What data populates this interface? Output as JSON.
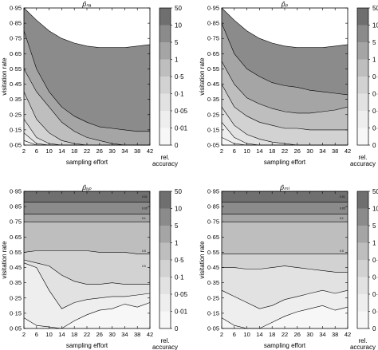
{
  "figure": {
    "x_tick_labels": [
      "2",
      "6",
      "10",
      "14",
      "18",
      "22",
      "26",
      "30",
      "34",
      "38",
      "42"
    ],
    "y_tick_labels": [
      "0·05",
      "0·15",
      "0·25",
      "0·35",
      "0·45",
      "0·55",
      "0·65",
      "0·75",
      "0·85",
      "0·95"
    ],
    "colorbar": {
      "tick_labels": [
        "50",
        "10",
        "5",
        "1",
        "0·5",
        "0·1",
        "0·05",
        "0·01",
        "0"
      ],
      "label_line1": "rel.",
      "label_line2": "accuracy",
      "colors": [
        "#6f6f6f",
        "#8b8b8b",
        "#a5a5a5",
        "#bebebe",
        "#d2d2d2",
        "#e2e2e2",
        "#eeeeee",
        "#f7f7f7"
      ]
    }
  },
  "chart_data": [
    {
      "type": "heatmap",
      "title": "p̂ₙₐ",
      "xlabel": "sampling effort",
      "ylabel": "visitation rate",
      "xlim": [
        2,
        42
      ],
      "ylim": [
        0.05,
        0.95
      ],
      "x_ticks": [
        2,
        6,
        10,
        14,
        18,
        22,
        26,
        30,
        34,
        38,
        42
      ],
      "y_ticks": [
        0.05,
        0.15,
        0.25,
        0.35,
        0.45,
        0.55,
        0.65,
        0.75,
        0.85,
        0.95
      ],
      "contour_levels": [
        0.01,
        0.05,
        0.1,
        0.5,
        1,
        5,
        10,
        50
      ],
      "bands": [
        {
          "level": 6,
          "x": [
            2,
            6,
            10,
            14,
            18,
            22,
            26,
            30,
            34,
            38,
            42
          ],
          "y": [
            0.95,
            0.87,
            0.8,
            0.75,
            0.72,
            0.7,
            0.69,
            0.69,
            0.69,
            0.7,
            0.71
          ]
        },
        {
          "level": 5,
          "x": [
            2,
            6,
            10,
            14,
            18,
            22,
            26,
            30,
            34,
            38,
            42
          ],
          "y": [
            0.8,
            0.55,
            0.4,
            0.3,
            0.24,
            0.2,
            0.17,
            0.16,
            0.15,
            0.14,
            0.14
          ]
        },
        {
          "level": 4,
          "x": [
            2,
            6,
            10,
            14,
            18,
            22,
            26,
            30,
            34,
            38,
            42
          ],
          "y": [
            0.55,
            0.4,
            0.3,
            0.2,
            0.14,
            0.1,
            0.08,
            0.06,
            0.05,
            0.05,
            0.05
          ]
        },
        {
          "level": 3,
          "x": [
            2,
            6,
            10,
            14,
            18,
            22,
            26,
            30,
            34,
            38,
            42
          ],
          "y": [
            0.4,
            0.22,
            0.13,
            0.08,
            0.06,
            0.05,
            0.05,
            0.05,
            0.05,
            0.05,
            0.05
          ]
        },
        {
          "level": 2,
          "x": [
            2,
            6,
            10,
            14,
            18,
            22,
            26,
            30,
            34,
            38,
            42
          ],
          "y": [
            0.22,
            0.1,
            0.06,
            0.05,
            0.05,
            0.05,
            0.05,
            0.05,
            0.05,
            0.05,
            0.05
          ]
        },
        {
          "level": 1,
          "x": [
            2,
            6,
            10,
            14,
            18,
            22,
            26,
            30,
            34,
            38,
            42
          ],
          "y": [
            0.13,
            0.06,
            0.05,
            0.05,
            0.05,
            0.05,
            0.05,
            0.05,
            0.05,
            0.05,
            0.05
          ]
        },
        {
          "level": 0,
          "x": [
            2,
            6,
            10,
            14,
            18,
            22,
            26,
            30,
            34,
            38,
            42
          ],
          "y": [
            0.08,
            0.05,
            0.05,
            0.05,
            0.05,
            0.05,
            0.05,
            0.05,
            0.05,
            0.05,
            0.05
          ]
        }
      ]
    },
    {
      "type": "heatmap",
      "title": "p̂ₚ",
      "xlabel": "sampling effort",
      "ylabel": "visitation rate",
      "xlim": [
        2,
        42
      ],
      "ylim": [
        0.05,
        0.95
      ],
      "x_ticks": [
        2,
        6,
        10,
        14,
        18,
        22,
        26,
        30,
        34,
        38,
        42
      ],
      "y_ticks": [
        0.05,
        0.15,
        0.25,
        0.35,
        0.45,
        0.55,
        0.65,
        0.75,
        0.85,
        0.95
      ],
      "contour_levels": [
        0.01,
        0.05,
        0.1,
        0.5,
        1,
        5,
        10,
        50
      ],
      "bands": [
        {
          "level": 6,
          "x": [
            2,
            6,
            10,
            14,
            18,
            22,
            26,
            30,
            34,
            38,
            42
          ],
          "y": [
            0.95,
            0.87,
            0.8,
            0.75,
            0.72,
            0.7,
            0.69,
            0.69,
            0.69,
            0.7,
            0.71
          ]
        },
        {
          "level": 5,
          "x": [
            2,
            6,
            10,
            14,
            18,
            22,
            26,
            30,
            34,
            38,
            42
          ],
          "y": [
            0.85,
            0.65,
            0.55,
            0.5,
            0.46,
            0.44,
            0.43,
            0.41,
            0.4,
            0.39,
            0.38
          ]
        },
        {
          "level": 4,
          "x": [
            2,
            6,
            10,
            14,
            18,
            22,
            26,
            30,
            34,
            38,
            42
          ],
          "y": [
            0.6,
            0.45,
            0.36,
            0.32,
            0.29,
            0.27,
            0.26,
            0.26,
            0.27,
            0.28,
            0.3
          ]
        },
        {
          "level": 3,
          "x": [
            2,
            6,
            10,
            14,
            18,
            22,
            26,
            30,
            34,
            38,
            42
          ],
          "y": [
            0.45,
            0.3,
            0.24,
            0.2,
            0.18,
            0.16,
            0.16,
            0.15,
            0.15,
            0.15,
            0.15
          ]
        },
        {
          "level": 2,
          "x": [
            2,
            6,
            10,
            14,
            18,
            22,
            26,
            30,
            34,
            38,
            42
          ],
          "y": [
            0.3,
            0.18,
            0.12,
            0.09,
            0.07,
            0.06,
            0.05,
            0.05,
            0.05,
            0.05,
            0.05
          ]
        },
        {
          "level": 1,
          "x": [
            2,
            6,
            10,
            14,
            18,
            22,
            26,
            30,
            34,
            38,
            42
          ],
          "y": [
            0.2,
            0.1,
            0.06,
            0.05,
            0.05,
            0.05,
            0.05,
            0.05,
            0.05,
            0.05,
            0.05
          ]
        },
        {
          "level": 0,
          "x": [
            2,
            6,
            10,
            14,
            18,
            22,
            26,
            30,
            34,
            38,
            42
          ],
          "y": [
            0.1,
            0.06,
            0.05,
            0.05,
            0.05,
            0.05,
            0.05,
            0.05,
            0.05,
            0.05,
            0.05
          ]
        }
      ]
    },
    {
      "type": "heatmap",
      "title": "p̂ₐₚ",
      "xlabel": "sampling effort",
      "ylabel": "visitation rate",
      "xlim": [
        2,
        42
      ],
      "ylim": [
        0.05,
        0.95
      ],
      "x_ticks": [
        2,
        6,
        10,
        14,
        18,
        22,
        26,
        30,
        34,
        38,
        42
      ],
      "y_ticks": [
        0.05,
        0.15,
        0.25,
        0.35,
        0.45,
        0.55,
        0.65,
        0.75,
        0.85,
        0.95
      ],
      "contour_levels": [
        0.01,
        0.05,
        0.1,
        0.5,
        1,
        5,
        10,
        50
      ],
      "contour_labels": [
        "0.01",
        "0.05",
        "0.1",
        "0.5",
        "0.5"
      ],
      "bands": [
        {
          "level": 7,
          "x": [
            2,
            42
          ],
          "y": [
            0.95,
            0.95
          ]
        },
        {
          "level": 6,
          "x": [
            2,
            42
          ],
          "y": [
            0.88,
            0.88
          ]
        },
        {
          "level": 5,
          "x": [
            2,
            42
          ],
          "y": [
            0.8,
            0.8
          ]
        },
        {
          "level": 4,
          "x": [
            2,
            6,
            10,
            14,
            18,
            22,
            26,
            30,
            34,
            38,
            42
          ],
          "y": [
            0.75,
            0.75,
            0.75,
            0.75,
            0.75,
            0.75,
            0.75,
            0.75,
            0.75,
            0.75,
            0.75
          ]
        },
        {
          "level": 3,
          "x": [
            2,
            6,
            10,
            14,
            18,
            22,
            26,
            30,
            34,
            38,
            42
          ],
          "y": [
            0.55,
            0.56,
            0.56,
            0.56,
            0.56,
            0.56,
            0.55,
            0.55,
            0.55,
            0.54,
            0.54
          ]
        },
        {
          "level": 2,
          "x": [
            2,
            6,
            10,
            14,
            18,
            22,
            26,
            30,
            34,
            38,
            42
          ],
          "y": [
            0.5,
            0.48,
            0.46,
            0.4,
            0.36,
            0.34,
            0.34,
            0.35,
            0.34,
            0.34,
            0.34
          ]
        },
        {
          "level": 1,
          "x": [
            2,
            6,
            10,
            14,
            18,
            22,
            26,
            30,
            34,
            38,
            42
          ],
          "y": [
            0.48,
            0.45,
            0.3,
            0.18,
            0.22,
            0.24,
            0.25,
            0.26,
            0.26,
            0.27,
            0.28
          ]
        },
        {
          "level": 0,
          "x": [
            2,
            6,
            10,
            14,
            18,
            22,
            26,
            30,
            34,
            38,
            42
          ],
          "y": [
            0.12,
            0.07,
            0.06,
            0.05,
            0.1,
            0.14,
            0.17,
            0.18,
            0.21,
            0.19,
            0.22
          ]
        }
      ]
    },
    {
      "type": "heatmap",
      "title": "p̂ₘₗ",
      "xlabel": "sampling effort",
      "ylabel": "visitation rate",
      "xlim": [
        2,
        42
      ],
      "ylim": [
        0.05,
        0.95
      ],
      "x_ticks": [
        2,
        6,
        10,
        14,
        18,
        22,
        26,
        30,
        34,
        38,
        42
      ],
      "y_ticks": [
        0.05,
        0.15,
        0.25,
        0.35,
        0.45,
        0.55,
        0.65,
        0.75,
        0.85,
        0.95
      ],
      "contour_levels": [
        0.01,
        0.05,
        0.1,
        0.5,
        1,
        5,
        10,
        50
      ],
      "contour_labels": [
        "0.01",
        "0.05",
        "0.1",
        "0.5"
      ],
      "bands": [
        {
          "level": 7,
          "x": [
            2,
            42
          ],
          "y": [
            0.95,
            0.95
          ]
        },
        {
          "level": 6,
          "x": [
            2,
            42
          ],
          "y": [
            0.88,
            0.88
          ]
        },
        {
          "level": 5,
          "x": [
            2,
            42
          ],
          "y": [
            0.8,
            0.8
          ]
        },
        {
          "level": 4,
          "x": [
            2,
            6,
            10,
            14,
            18,
            22,
            26,
            30,
            34,
            38,
            42
          ],
          "y": [
            0.75,
            0.75,
            0.75,
            0.75,
            0.75,
            0.75,
            0.75,
            0.75,
            0.75,
            0.75,
            0.75
          ]
        },
        {
          "level": 3,
          "x": [
            2,
            6,
            10,
            14,
            18,
            22,
            26,
            30,
            34,
            38,
            42
          ],
          "y": [
            0.54,
            0.54,
            0.54,
            0.54,
            0.54,
            0.54,
            0.54,
            0.54,
            0.54,
            0.54,
            0.54
          ]
        },
        {
          "level": 2,
          "x": [
            2,
            6,
            10,
            14,
            18,
            22,
            26,
            30,
            34,
            38,
            42
          ],
          "y": [
            0.45,
            0.45,
            0.44,
            0.44,
            0.45,
            0.46,
            0.45,
            0.44,
            0.43,
            0.42,
            0.42
          ]
        },
        {
          "level": 1,
          "x": [
            2,
            6,
            10,
            14,
            18,
            22,
            26,
            30,
            34,
            38,
            42
          ],
          "y": [
            0.3,
            0.26,
            0.22,
            0.18,
            0.2,
            0.24,
            0.26,
            0.28,
            0.3,
            0.28,
            0.3
          ]
        },
        {
          "level": 0,
          "x": [
            2,
            6,
            10,
            14,
            18,
            22,
            26,
            30,
            34,
            38,
            42
          ],
          "y": [
            0.12,
            0.07,
            0.05,
            0.05,
            0.09,
            0.13,
            0.16,
            0.18,
            0.2,
            0.17,
            0.19
          ]
        }
      ]
    }
  ]
}
